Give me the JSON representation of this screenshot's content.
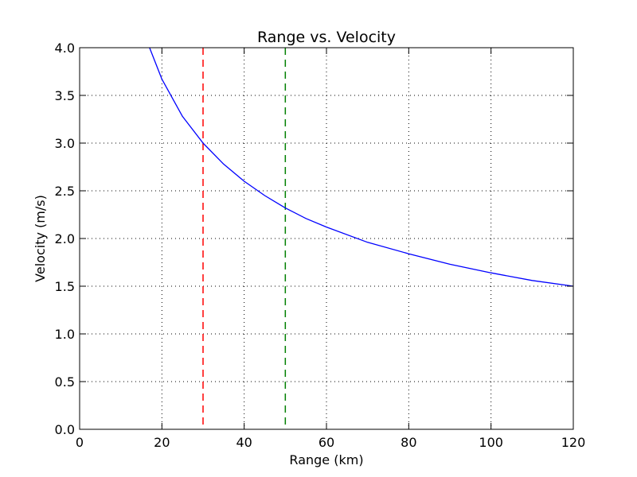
{
  "chart_data": {
    "type": "line",
    "title": "Range vs. Velocity",
    "xlabel": "Range (km)",
    "ylabel": "Velocity (m/s)",
    "xlim": [
      0,
      120
    ],
    "ylim": [
      0,
      4
    ],
    "xticks": [
      0,
      20,
      40,
      60,
      80,
      100,
      120
    ],
    "yticks": [
      0.0,
      0.5,
      1.0,
      1.5,
      2.0,
      2.5,
      3.0,
      3.5,
      4.0
    ],
    "xtick_labels": [
      "0",
      "20",
      "40",
      "60",
      "80",
      "100",
      "120"
    ],
    "ytick_labels": [
      "0.0",
      "0.5",
      "1.0",
      "1.5",
      "2.0",
      "2.5",
      "3.0",
      "3.5",
      "4.0"
    ],
    "grid": true,
    "series": [
      {
        "style": "solid",
        "color": "#0000ff",
        "x": [
          17,
          20,
          25,
          30,
          35,
          40,
          45,
          50,
          55,
          60,
          70,
          80,
          90,
          100,
          110,
          120
        ],
        "y": [
          4.0,
          3.67,
          3.28,
          3.0,
          2.78,
          2.6,
          2.45,
          2.32,
          2.21,
          2.12,
          1.96,
          1.84,
          1.73,
          1.64,
          1.56,
          1.5
        ]
      }
    ],
    "vlines": [
      {
        "x": 30,
        "color": "#ff0000",
        "style": "dashed"
      },
      {
        "x": 50,
        "color": "#008000",
        "style": "dashed"
      }
    ]
  }
}
